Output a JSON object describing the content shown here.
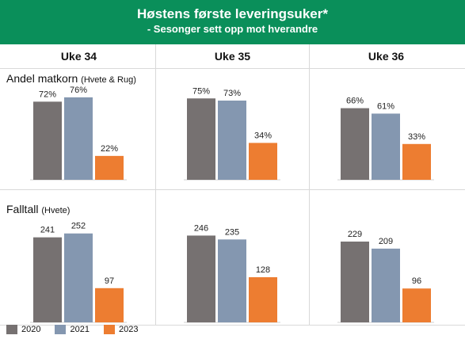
{
  "header": {
    "title": "Høstens første leveringsuker*",
    "subtitle": "- Sesonger sett opp mot hverandre"
  },
  "legend": [
    {
      "name": "2020",
      "color": "#767171"
    },
    {
      "name": "2021",
      "color": "#8497b0"
    },
    {
      "name": "2023",
      "color": "#ed7d31"
    }
  ],
  "chart_data": [
    {
      "type": "bar",
      "title": "Andel matkorn",
      "title_suffix": "(Hvete & Rug)",
      "categories": [
        "Uke 34",
        "Uke 35",
        "Uke 36"
      ],
      "series": [
        {
          "name": "2020",
          "values": [
            72,
            75,
            66
          ],
          "labels": [
            "72%",
            "75%",
            "66%"
          ]
        },
        {
          "name": "2021",
          "values": [
            76,
            73,
            61
          ],
          "labels": [
            "76%",
            "73%",
            "61%"
          ]
        },
        {
          "name": "2023",
          "values": [
            22,
            34,
            33
          ],
          "labels": [
            "22%",
            "34%",
            "33%"
          ]
        }
      ],
      "unit": "%",
      "ylim": [
        0,
        100
      ],
      "grid": false,
      "legend": "bottom-left"
    },
    {
      "type": "bar",
      "title": "Falltall",
      "title_suffix": "(Hvete)",
      "categories": [
        "Uke 34",
        "Uke 35",
        "Uke 36"
      ],
      "series": [
        {
          "name": "2020",
          "values": [
            241,
            246,
            229
          ],
          "labels": [
            "241",
            "246",
            "229"
          ]
        },
        {
          "name": "2021",
          "values": [
            252,
            235,
            209
          ],
          "labels": [
            "252",
            "235",
            "209"
          ]
        },
        {
          "name": "2023",
          "values": [
            97,
            128,
            96
          ],
          "labels": [
            "97",
            "128",
            "96"
          ]
        }
      ],
      "ylim": [
        0,
        330
      ],
      "grid": false,
      "legend": "bottom-left"
    }
  ]
}
